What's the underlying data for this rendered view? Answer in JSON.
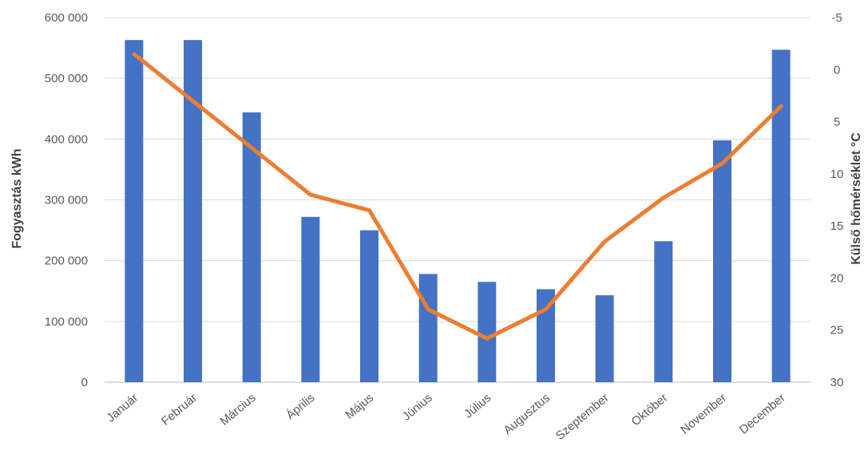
{
  "chart_data": {
    "type": "bar",
    "categories": [
      "Január",
      "Február",
      "Március",
      "Április",
      "Május",
      "Június",
      "Július",
      "Augusztus",
      "Szeptember",
      "Október",
      "November",
      "December"
    ],
    "series": [
      {
        "type": "bar",
        "axis": "left",
        "color": "#4472C4",
        "values": [
          563000,
          563000,
          444000,
          272000,
          250000,
          178000,
          165000,
          153000,
          143000,
          232000,
          398000,
          547000
        ]
      },
      {
        "type": "line",
        "axis": "right",
        "color": "#ED7D31",
        "values": [
          -1.5,
          3,
          7.5,
          12,
          13.5,
          23,
          25.8,
          23,
          16.5,
          12.3,
          9,
          3.5
        ]
      }
    ],
    "ylabel": "Fogyasztás kWh",
    "ylabel_right": "Külső hőmérséklet °C",
    "ylim": [
      0,
      600000
    ],
    "yticks": [
      "0",
      "100 000",
      "200 000",
      "300 000",
      "400 000",
      "500 000",
      "600 000"
    ],
    "ylim_right": [
      -5,
      30
    ],
    "y2ticks": [
      "-5",
      "0",
      "5",
      "10",
      "15",
      "20",
      "25",
      "30"
    ],
    "right_axis_reversed": true,
    "grid": true
  }
}
